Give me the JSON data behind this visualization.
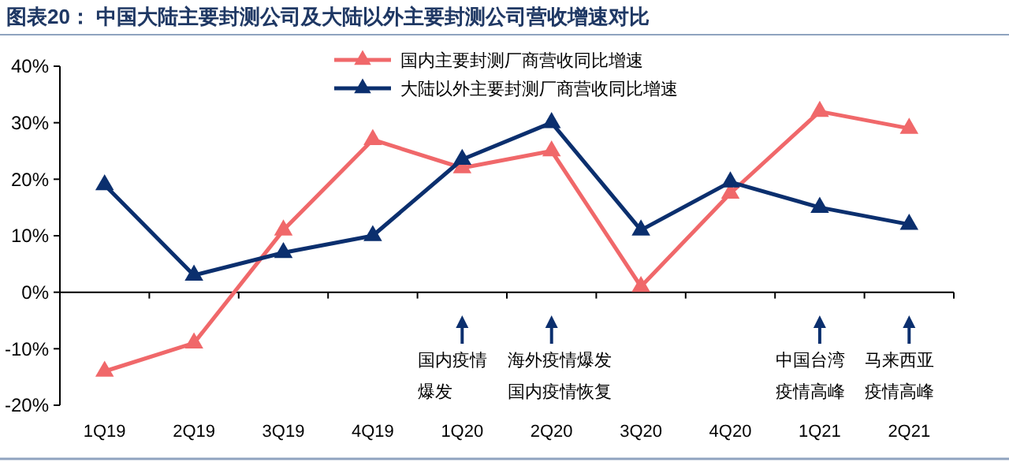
{
  "chart_data": {
    "type": "line",
    "title": "图表20：  中国大陆主要封测公司及大陆以外主要封测公司营收增速对比",
    "categories": [
      "1Q19",
      "2Q19",
      "3Q19",
      "4Q19",
      "1Q20",
      "2Q20",
      "3Q20",
      "4Q20",
      "1Q21",
      "2Q21"
    ],
    "series": [
      {
        "name": "国内主要封测厂商营收同比增速",
        "color": "#f0686a",
        "values": [
          -14,
          -9,
          11,
          27,
          22,
          25,
          1,
          17.5,
          32,
          29
        ]
      },
      {
        "name": "大陆以外主要封测厂商营收同比增速",
        "color": "#0b2f6e",
        "values": [
          19,
          3,
          7,
          10,
          23.5,
          30,
          11,
          19.5,
          15,
          12
        ]
      }
    ],
    "ylim": [
      -20,
      40
    ],
    "yticks": [
      {
        "value": -20,
        "label": "-20%"
      },
      {
        "value": -10,
        "label": "-10%"
      },
      {
        "value": 0,
        "label": "0%"
      },
      {
        "value": 10,
        "label": "10%"
      },
      {
        "value": 20,
        "label": "20%"
      },
      {
        "value": 30,
        "label": "30%"
      },
      {
        "value": 40,
        "label": "40%"
      }
    ],
    "marker": "triangle",
    "legend": "top",
    "annotations": [
      {
        "text": "国内疫情爆发",
        "x": "1Q20"
      },
      {
        "text": "海外疫情爆发国内疫情恢复",
        "x": "2Q20"
      },
      {
        "text": "中国台湾疫情高峰",
        "x": "1Q21"
      },
      {
        "text": "马来西亚疫情高峰",
        "x": "2Q21"
      }
    ]
  }
}
